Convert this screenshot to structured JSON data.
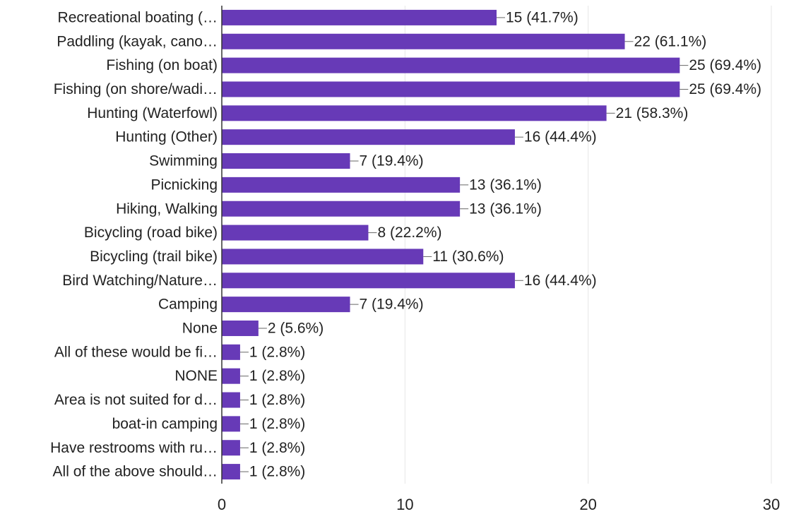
{
  "chart_data": {
    "type": "bar",
    "orientation": "horizontal",
    "categories": [
      "Recreational boating (…",
      "Paddling (kayak, cano…",
      "Fishing (on boat)",
      "Fishing (on shore/wadi…",
      "Hunting (Waterfowl)",
      "Hunting (Other)",
      "Swimming",
      "Picnicking",
      "Hiking, Walking",
      "Bicycling (road bike)",
      "Bicycling (trail bike)",
      "Bird Watching/Nature…",
      "Camping",
      "None",
      "All of these would be fi…",
      "NONE",
      "Area is not suited for d…",
      "boat-in camping",
      "Have restrooms with ru…",
      "All of the above should…"
    ],
    "values": [
      15,
      22,
      25,
      25,
      21,
      16,
      7,
      13,
      13,
      8,
      11,
      16,
      7,
      2,
      1,
      1,
      1,
      1,
      1,
      1
    ],
    "value_labels": [
      "15 (41.7%)",
      "22 (61.1%)",
      "25 (69.4%)",
      "25 (69.4%)",
      "21 (58.3%)",
      "16 (44.4%)",
      "7 (19.4%)",
      "13 (36.1%)",
      "13 (36.1%)",
      "8 (22.2%)",
      "11 (30.6%)",
      "16 (44.4%)",
      "7 (19.4%)",
      "2 (5.6%)",
      "1 (2.8%)",
      "1 (2.8%)",
      "1 (2.8%)",
      "1 (2.8%)",
      "1 (2.8%)",
      "1 (2.8%)"
    ],
    "color": "#673ab7",
    "xlim": [
      0,
      30
    ],
    "xticks": [
      0,
      10,
      20,
      30
    ],
    "grid": true
  }
}
